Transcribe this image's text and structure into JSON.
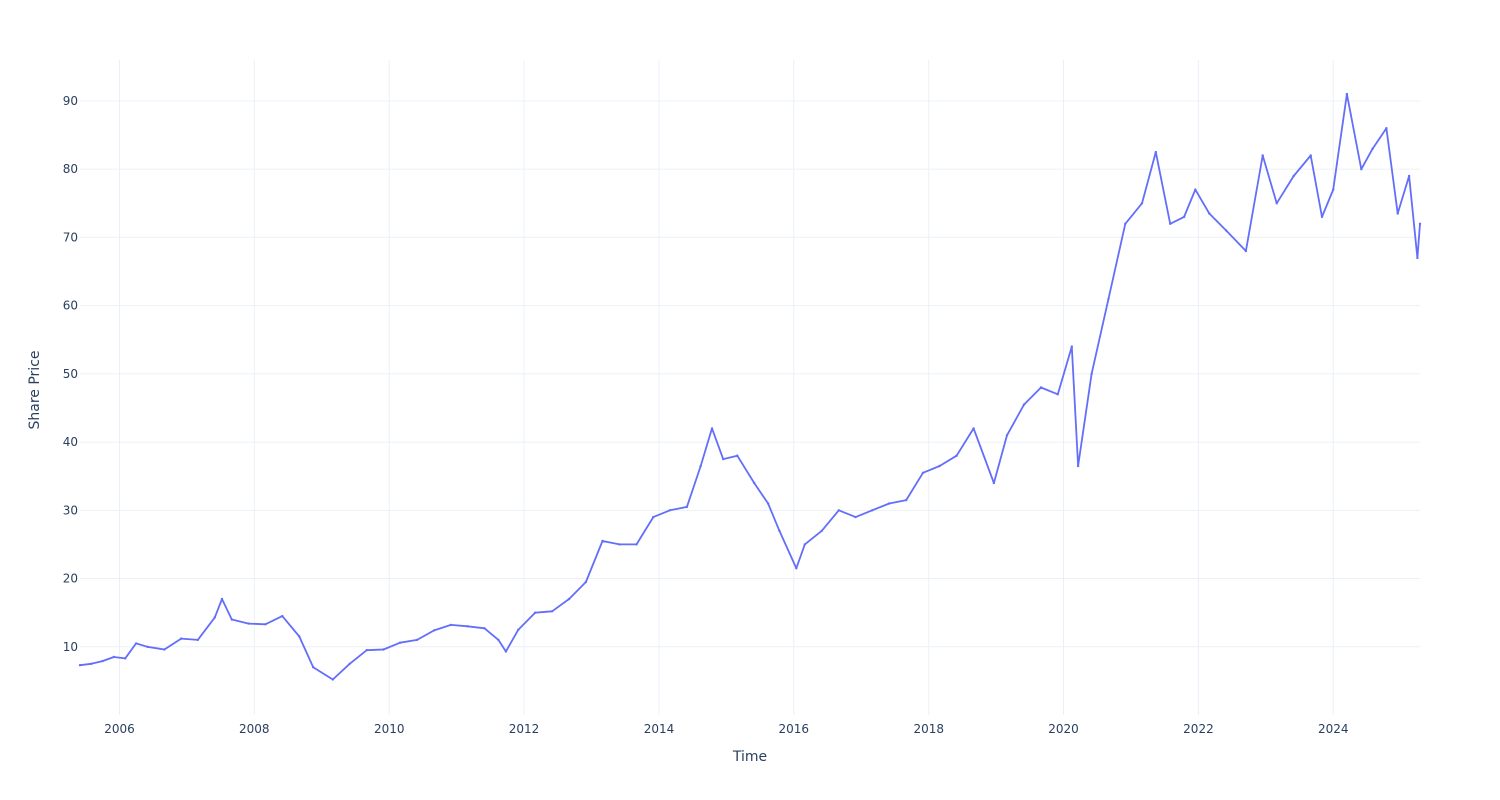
{
  "chart_data": {
    "type": "line",
    "title": "",
    "xlabel": "Time",
    "ylabel": "Share Price",
    "xlim": [
      "2005-06-01",
      "2025-04-15"
    ],
    "ylim": [
      0,
      96
    ],
    "x_ticks": [
      {
        "value": "2006-01-01",
        "label": "2006"
      },
      {
        "value": "2008-01-01",
        "label": "2008"
      },
      {
        "value": "2010-01-01",
        "label": "2010"
      },
      {
        "value": "2012-01-01",
        "label": "2012"
      },
      {
        "value": "2014-01-01",
        "label": "2014"
      },
      {
        "value": "2016-01-01",
        "label": "2016"
      },
      {
        "value": "2018-01-01",
        "label": "2018"
      },
      {
        "value": "2020-01-01",
        "label": "2020"
      },
      {
        "value": "2022-01-01",
        "label": "2022"
      },
      {
        "value": "2024-01-01",
        "label": "2024"
      }
    ],
    "y_ticks": [
      {
        "value": 10,
        "label": "10"
      },
      {
        "value": 20,
        "label": "20"
      },
      {
        "value": 30,
        "label": "30"
      },
      {
        "value": 40,
        "label": "40"
      },
      {
        "value": 50,
        "label": "50"
      },
      {
        "value": 60,
        "label": "60"
      },
      {
        "value": 70,
        "label": "70"
      },
      {
        "value": 80,
        "label": "80"
      },
      {
        "value": 90,
        "label": "90"
      }
    ],
    "grid": true,
    "legend": "none",
    "colors": {
      "line": "#636efa",
      "grid": "#ebf0f8",
      "text": "#2a3f5f"
    },
    "series": [
      {
        "name": "",
        "x": [
          "2005-06-01",
          "2005-08-01",
          "2005-10-01",
          "2005-12-01",
          "2006-02-01",
          "2006-04-01",
          "2006-06-01",
          "2006-09-01",
          "2006-12-01",
          "2007-03-01",
          "2007-06-01",
          "2007-07-10",
          "2007-09-01",
          "2007-12-01",
          "2008-03-01",
          "2008-06-01",
          "2008-09-01",
          "2008-11-15",
          "2009-03-01",
          "2009-06-01",
          "2009-09-01",
          "2009-12-01",
          "2010-03-01",
          "2010-06-01",
          "2010-09-01",
          "2010-12-01",
          "2011-03-01",
          "2011-06-01",
          "2011-08-15",
          "2011-09-25",
          "2011-12-01",
          "2012-03-01",
          "2012-06-01",
          "2012-09-01",
          "2012-12-01",
          "2013-03-01",
          "2013-06-01",
          "2013-09-01",
          "2013-12-01",
          "2014-03-01",
          "2014-06-01",
          "2014-08-15",
          "2014-10-15",
          "2014-12-15",
          "2015-03-01",
          "2015-06-01",
          "2015-08-15",
          "2015-10-15",
          "2016-01-15",
          "2016-03-01",
          "2016-06-01",
          "2016-09-01",
          "2016-12-01",
          "2017-03-01",
          "2017-06-01",
          "2017-09-01",
          "2017-12-01",
          "2018-03-01",
          "2018-06-01",
          "2018-09-01",
          "2018-12-20",
          "2019-03-01",
          "2019-06-01",
          "2019-09-01",
          "2019-12-01",
          "2020-02-15",
          "2020-03-20",
          "2020-06-01",
          "2020-09-01",
          "2020-12-01",
          "2021-03-01",
          "2021-05-15",
          "2021-08-01",
          "2021-10-15",
          "2021-12-15",
          "2022-03-01",
          "2022-06-01",
          "2022-09-15",
          "2022-12-15",
          "2023-03-01",
          "2023-06-01",
          "2023-09-01",
          "2023-11-01",
          "2024-01-01",
          "2024-03-15",
          "2024-06-01",
          "2024-08-01",
          "2024-10-15",
          "2024-12-15",
          "2025-02-15",
          "2025-04-01",
          "2025-04-15"
        ],
        "y": [
          7.3,
          7.5,
          7.9,
          8.5,
          8.3,
          10.5,
          10.0,
          9.6,
          11.2,
          11.0,
          14.3,
          17.0,
          14.0,
          13.4,
          13.3,
          14.5,
          11.5,
          7.0,
          5.2,
          7.5,
          9.5,
          9.6,
          10.6,
          11.0,
          12.4,
          13.2,
          13.0,
          12.7,
          11.0,
          9.3,
          12.5,
          15.0,
          15.2,
          17.0,
          19.5,
          25.5,
          25.0,
          25.0,
          29.0,
          30.0,
          30.5,
          36.5,
          42.0,
          37.5,
          38.0,
          34.0,
          31.0,
          27.0,
          21.5,
          25.0,
          27.0,
          30.0,
          29.0,
          30.0,
          31.0,
          31.5,
          35.5,
          36.5,
          38.0,
          42.0,
          34.0,
          41.0,
          45.5,
          48.0,
          47.0,
          54.0,
          36.5,
          50.0,
          61.0,
          72.0,
          75.0,
          82.5,
          72.0,
          73.0,
          77.0,
          73.5,
          71.0,
          68.0,
          82.0,
          75.0,
          79.0,
          82.0,
          73.0,
          77.0,
          91.0,
          80.0,
          83.0,
          86.0,
          73.5,
          79.0,
          67.0,
          72.0
        ]
      }
    ]
  }
}
